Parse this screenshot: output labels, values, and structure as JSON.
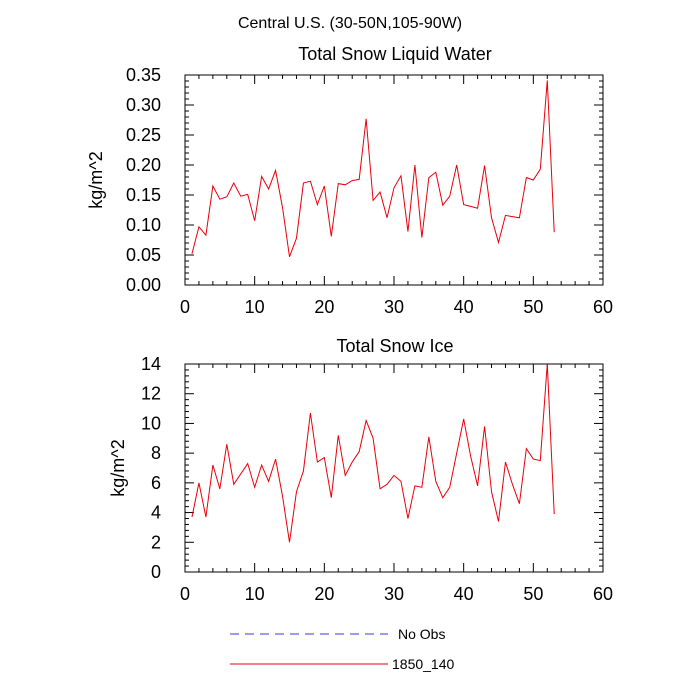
{
  "figure": {
    "suptitle": "Central U.S. (30-50N,105-90W)"
  },
  "legend": {
    "placement": "bottom-center",
    "entries": [
      {
        "label": "No Obs",
        "style": "dashed",
        "color": "#3a3ad0"
      },
      {
        "label": "1850_140",
        "style": "solid",
        "color": "#e8000b"
      }
    ]
  },
  "chart_data": [
    {
      "type": "line",
      "title": "Total Snow Liquid Water",
      "xlabel": "",
      "ylabel": "kg/m^2",
      "xlim": [
        0,
        60
      ],
      "ylim": [
        0,
        0.35
      ],
      "xticks": [
        "0",
        "10",
        "20",
        "30",
        "40",
        "50",
        "60"
      ],
      "yticks": [
        "0.00",
        "0.05",
        "0.10",
        "0.15",
        "0.20",
        "0.25",
        "0.30",
        "0.35"
      ],
      "grid": false,
      "series": [
        {
          "name": "1850_140",
          "color": "#e8000b",
          "x": [
            1,
            2,
            3,
            4,
            5,
            6,
            7,
            8,
            9,
            10,
            11,
            12,
            13,
            14,
            15,
            16,
            17,
            18,
            19,
            20,
            21,
            22,
            23,
            24,
            25,
            26,
            27,
            28,
            29,
            30,
            31,
            32,
            33,
            34,
            35,
            36,
            37,
            38,
            39,
            40,
            41,
            42,
            43,
            44,
            45,
            46,
            47,
            48,
            49,
            50,
            51,
            52,
            53
          ],
          "y": [
            0.052,
            0.097,
            0.083,
            0.165,
            0.143,
            0.147,
            0.17,
            0.148,
            0.151,
            0.107,
            0.181,
            0.16,
            0.191,
            0.129,
            0.047,
            0.078,
            0.17,
            0.173,
            0.134,
            0.165,
            0.081,
            0.169,
            0.167,
            0.174,
            0.176,
            0.277,
            0.141,
            0.155,
            0.112,
            0.162,
            0.182,
            0.089,
            0.2,
            0.079,
            0.179,
            0.188,
            0.133,
            0.148,
            0.2,
            0.134,
            0.131,
            0.128,
            0.199,
            0.112,
            0.071,
            0.116,
            0.114,
            0.112,
            0.179,
            0.175,
            0.193,
            0.341,
            0.088
          ]
        }
      ]
    },
    {
      "type": "line",
      "title": "Total Snow Ice",
      "xlabel": "",
      "ylabel": "kg/m^2",
      "xlim": [
        0,
        60
      ],
      "ylim": [
        0,
        14
      ],
      "xticks": [
        "0",
        "10",
        "20",
        "30",
        "40",
        "50",
        "60"
      ],
      "yticks": [
        "0",
        "2",
        "4",
        "6",
        "8",
        "10",
        "12",
        "14"
      ],
      "grid": false,
      "series": [
        {
          "name": "1850_140",
          "color": "#e8000b",
          "x": [
            1,
            2,
            3,
            4,
            5,
            6,
            7,
            8,
            9,
            10,
            11,
            12,
            13,
            14,
            15,
            16,
            17,
            18,
            19,
            20,
            21,
            22,
            23,
            24,
            25,
            26,
            27,
            28,
            29,
            30,
            31,
            32,
            33,
            34,
            35,
            36,
            37,
            38,
            39,
            40,
            41,
            42,
            43,
            44,
            45,
            46,
            47,
            48,
            49,
            50,
            51,
            52,
            53
          ],
          "y": [
            3.7,
            6.0,
            3.7,
            7.2,
            5.6,
            8.6,
            5.9,
            6.6,
            7.3,
            5.7,
            7.2,
            6.1,
            7.6,
            5.1,
            2.0,
            5.4,
            6.8,
            10.7,
            7.4,
            7.7,
            5.0,
            9.2,
            6.5,
            7.4,
            8.1,
            10.2,
            9.0,
            5.6,
            5.9,
            6.5,
            6.1,
            3.6,
            5.8,
            5.7,
            9.1,
            6.1,
            5.0,
            5.7,
            8.0,
            10.3,
            7.8,
            5.8,
            9.8,
            5.4,
            3.4,
            7.4,
            5.9,
            4.6,
            8.3,
            7.6,
            7.5,
            14.0,
            3.9
          ]
        }
      ]
    }
  ]
}
